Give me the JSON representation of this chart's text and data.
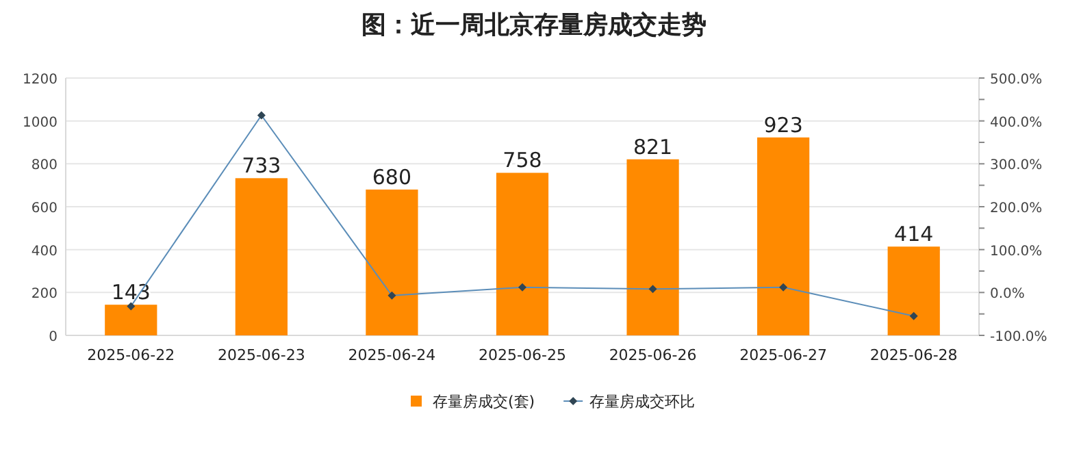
{
  "chart_data": {
    "type": "bar",
    "title": "图：近一周北京存量房成交走势",
    "categories": [
      "2025-06-22",
      "2025-06-23",
      "2025-06-24",
      "2025-06-25",
      "2025-06-26",
      "2025-06-27",
      "2025-06-28"
    ],
    "series": [
      {
        "name": "存量房成交(套)",
        "color": "#ff8a00",
        "values": [
          143,
          733,
          680,
          758,
          821,
          923,
          414
        ],
        "data_labels": true
      },
      {
        "name": "存量房成交环比",
        "type": "line",
        "axis": "y2",
        "color": "#5b8db8",
        "marker": "diamond",
        "values": [
          -32,
          413,
          -7,
          12,
          8,
          12,
          -55
        ]
      }
    ],
    "ylim": [
      0,
      1200
    ],
    "yticks": [
      0,
      200,
      400,
      600,
      800,
      1000,
      1200
    ],
    "y2lim": [
      -100,
      500
    ],
    "y2ticks": [
      {
        "value": -100,
        "label": "-100.0%"
      },
      {
        "value": -50,
        "label": null
      },
      {
        "value": 0,
        "label": "0.0%"
      },
      {
        "value": 50,
        "label": null
      },
      {
        "value": 100,
        "label": "100.0%"
      },
      {
        "value": 150,
        "label": null
      },
      {
        "value": 200,
        "label": "200.0%"
      },
      {
        "value": 250,
        "label": null
      },
      {
        "value": 300,
        "label": "300.0%"
      },
      {
        "value": 350,
        "label": null
      },
      {
        "value": 400,
        "label": "400.0%"
      },
      {
        "value": 450,
        "label": null
      },
      {
        "value": 500,
        "label": "500.0%"
      }
    ],
    "grid": "y",
    "legend": "bottom"
  }
}
